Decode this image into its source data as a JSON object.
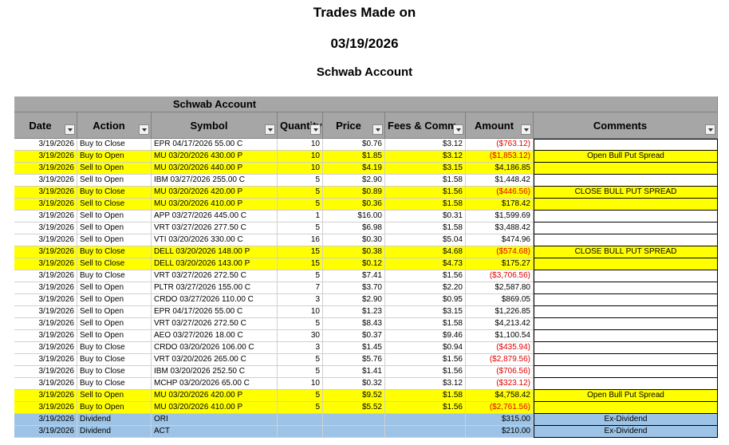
{
  "header": {
    "title": "Trades Made on",
    "date": "03/19/2026",
    "account": "Schwab Account"
  },
  "table": {
    "group_header": "Schwab Account",
    "columns": [
      "Date",
      "Action",
      "Symbol",
      "Quantity",
      "Price",
      "Fees & Comm",
      "Amount",
      "Comments"
    ],
    "rows": [
      {
        "fill": "#ffffff",
        "cells": [
          "3/19/2026",
          "Buy to Close",
          "EPR 04/17/2026 55.00 C",
          "10",
          "$0.76",
          "$3.12",
          "($763.12)",
          null
        ]
      },
      {
        "fill": "#ffff00",
        "cells": [
          "3/19/2026",
          "Buy to Open",
          "MU 03/20/2026 430.00 P",
          "10",
          "$1.85",
          "$3.12",
          "($1,853.12)",
          "Open Bull Put Spread"
        ]
      },
      {
        "fill": "#ffff00",
        "cells": [
          "3/19/2026",
          "Sell to Open",
          "MU 03/20/2026 440.00 P",
          "10",
          "$4.19",
          "$3.15",
          "$4,186.85",
          null
        ]
      },
      {
        "fill": "#ffffff",
        "cells": [
          "3/19/2026",
          "Sell to Open",
          "IBM 03/27/2026 255.00 C",
          "5",
          "$2.90",
          "$1.58",
          "$1,448.42",
          null
        ]
      },
      {
        "fill": "#ffff00",
        "cells": [
          "3/19/2026",
          "Buy to Close",
          "MU 03/20/2026 420.00 P",
          "5",
          "$0.89",
          "$1.56",
          "($446.56)",
          "CLOSE BULL PUT SPREAD"
        ]
      },
      {
        "fill": "#ffff00",
        "cells": [
          "3/19/2026",
          "Sell to Close",
          "MU 03/20/2026 410.00 P",
          "5",
          "$0.36",
          "$1.58",
          "$178.42",
          null
        ]
      },
      {
        "fill": "#ffffff",
        "cells": [
          "3/19/2026",
          "Sell to Open",
          "APP 03/27/2026 445.00 C",
          "1",
          "$16.00",
          "$0.31",
          "$1,599.69",
          null
        ]
      },
      {
        "fill": "#ffffff",
        "cells": [
          "3/19/2026",
          "Sell to Open",
          "VRT 03/27/2026 277.50 C",
          "5",
          "$6.98",
          "$1.58",
          "$3,488.42",
          null
        ]
      },
      {
        "fill": "#ffffff",
        "cells": [
          "3/19/2026",
          "Sell to Open",
          "VTI 03/20/2026 330.00 C",
          "16",
          "$0.30",
          "$5.04",
          "$474.96",
          null
        ]
      },
      {
        "fill": "#ffff00",
        "cells": [
          "3/19/2026",
          "Buy to Close",
          "DELL 03/20/2026 148.00 P",
          "15",
          "$0.38",
          "$4.68",
          "($574.68)",
          "CLOSE BULL PUT SPREAD"
        ]
      },
      {
        "fill": "#ffff00",
        "cells": [
          "3/19/2026",
          "Sell to Close",
          "DELL 03/20/2026 143.00 P",
          "15",
          "$0.12",
          "$4.73",
          "$175.27",
          null
        ]
      },
      {
        "fill": "#ffffff",
        "cells": [
          "3/19/2026",
          "Buy to Close",
          "VRT 03/27/2026 272.50 C",
          "5",
          "$7.41",
          "$1.56",
          "($3,706.56)",
          null
        ]
      },
      {
        "fill": "#ffffff",
        "cells": [
          "3/19/2026",
          "Sell to Open",
          "PLTR 03/27/2026 155.00 C",
          "7",
          "$3.70",
          "$2.20",
          "$2,587.80",
          null
        ]
      },
      {
        "fill": "#ffffff",
        "cells": [
          "3/19/2026",
          "Sell to Open",
          "CRDO 03/27/2026 110.00 C",
          "3",
          "$2.90",
          "$0.95",
          "$869.05",
          null
        ]
      },
      {
        "fill": "#ffffff",
        "cells": [
          "3/19/2026",
          "Sell to Open",
          "EPR 04/17/2026 55.00 C",
          "10",
          "$1.23",
          "$3.15",
          "$1,226.85",
          null
        ]
      },
      {
        "fill": "#ffffff",
        "cells": [
          "3/19/2026",
          "Sell to Open",
          "VRT 03/27/2026 272.50 C",
          "5",
          "$8.43",
          "$1.58",
          "$4,213.42",
          null
        ]
      },
      {
        "fill": "#ffffff",
        "cells": [
          "3/19/2026",
          "Sell to Open",
          "AEO 03/27/2026 18.00 C",
          "30",
          "$0.37",
          "$9.46",
          "$1,100.54",
          null
        ]
      },
      {
        "fill": "#ffffff",
        "cells": [
          "3/19/2026",
          "Buy to Close",
          "CRDO 03/20/2026 106.00 C",
          "3",
          "$1.45",
          "$0.94",
          "($435.94)",
          null
        ]
      },
      {
        "fill": "#ffffff",
        "cells": [
          "3/19/2026",
          "Buy to Close",
          "VRT 03/20/2026 265.00 C",
          "5",
          "$5.76",
          "$1.56",
          "($2,879.56)",
          null
        ]
      },
      {
        "fill": "#ffffff",
        "cells": [
          "3/19/2026",
          "Buy to Close",
          "IBM 03/20/2026 252.50 C",
          "5",
          "$1.41",
          "$1.56",
          "($706.56)",
          null
        ]
      },
      {
        "fill": "#ffffff",
        "cells": [
          "3/19/2026",
          "Buy to Close",
          "MCHP 03/20/2026 65.00 C",
          "10",
          "$0.32",
          "$3.12",
          "($323.12)",
          null
        ]
      },
      {
        "fill": "#ffff00",
        "cells": [
          "3/19/2026",
          "Sell to Open",
          "MU 03/20/2026 420.00 P",
          "5",
          "$9.52",
          "$1.58",
          "$4,758.42",
          "Open Bull Put Spread"
        ]
      },
      {
        "fill": "#ffff00",
        "cells": [
          "3/19/2026",
          "Buy to Open",
          "MU 03/20/2026 410.00 P",
          "5",
          "$5.52",
          "$1.56",
          "($2,761.56)",
          null
        ]
      },
      {
        "fill": "#9dc3e6",
        "cells": [
          "3/19/2026",
          "Dividend",
          "ORI",
          null,
          null,
          null,
          "$315.00",
          "Ex-Dividend"
        ]
      },
      {
        "fill": "#9dc3e6",
        "cells": [
          "3/19/2026",
          "Dividend",
          "ACT",
          null,
          null,
          null,
          "$210.00",
          "Ex-Dividend"
        ]
      }
    ]
  }
}
